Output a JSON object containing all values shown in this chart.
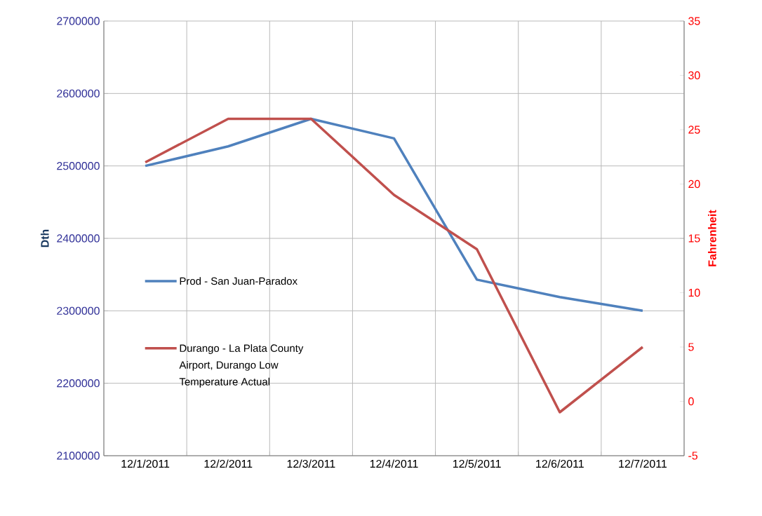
{
  "chart_data": {
    "type": "line",
    "categories": [
      "12/1/2011",
      "12/2/2011",
      "12/3/2011",
      "12/4/2011",
      "12/5/2011",
      "12/6/2011",
      "12/7/2011",
      null
    ],
    "series": [
      {
        "name": "Prod - San Juan-Paradox",
        "color": "#4f81bd",
        "values": [
          2500000,
          2527000,
          2565000,
          2538000,
          2343000,
          2319000,
          2300000,
          null
        ]
      },
      {
        "name": "Durango - La Plata County Airport, Durango Low Temperature Actual",
        "color": "#c0504d",
        "axis": "y2",
        "values": [
          22,
          26,
          26,
          19,
          14,
          -1,
          5,
          null
        ]
      }
    ],
    "ylabel": "Dth",
    "y2label": "Fahrenheit",
    "ylim": [
      2100000,
      2700000
    ],
    "yticks": [
      2100000,
      2200000,
      2300000,
      2400000,
      2500000,
      2600000,
      2700000
    ],
    "y2lim": [
      -5,
      35
    ],
    "y2ticks": [
      -5,
      0,
      5,
      10,
      15,
      20,
      25,
      30,
      35
    ],
    "grid": true,
    "legend": "left"
  }
}
